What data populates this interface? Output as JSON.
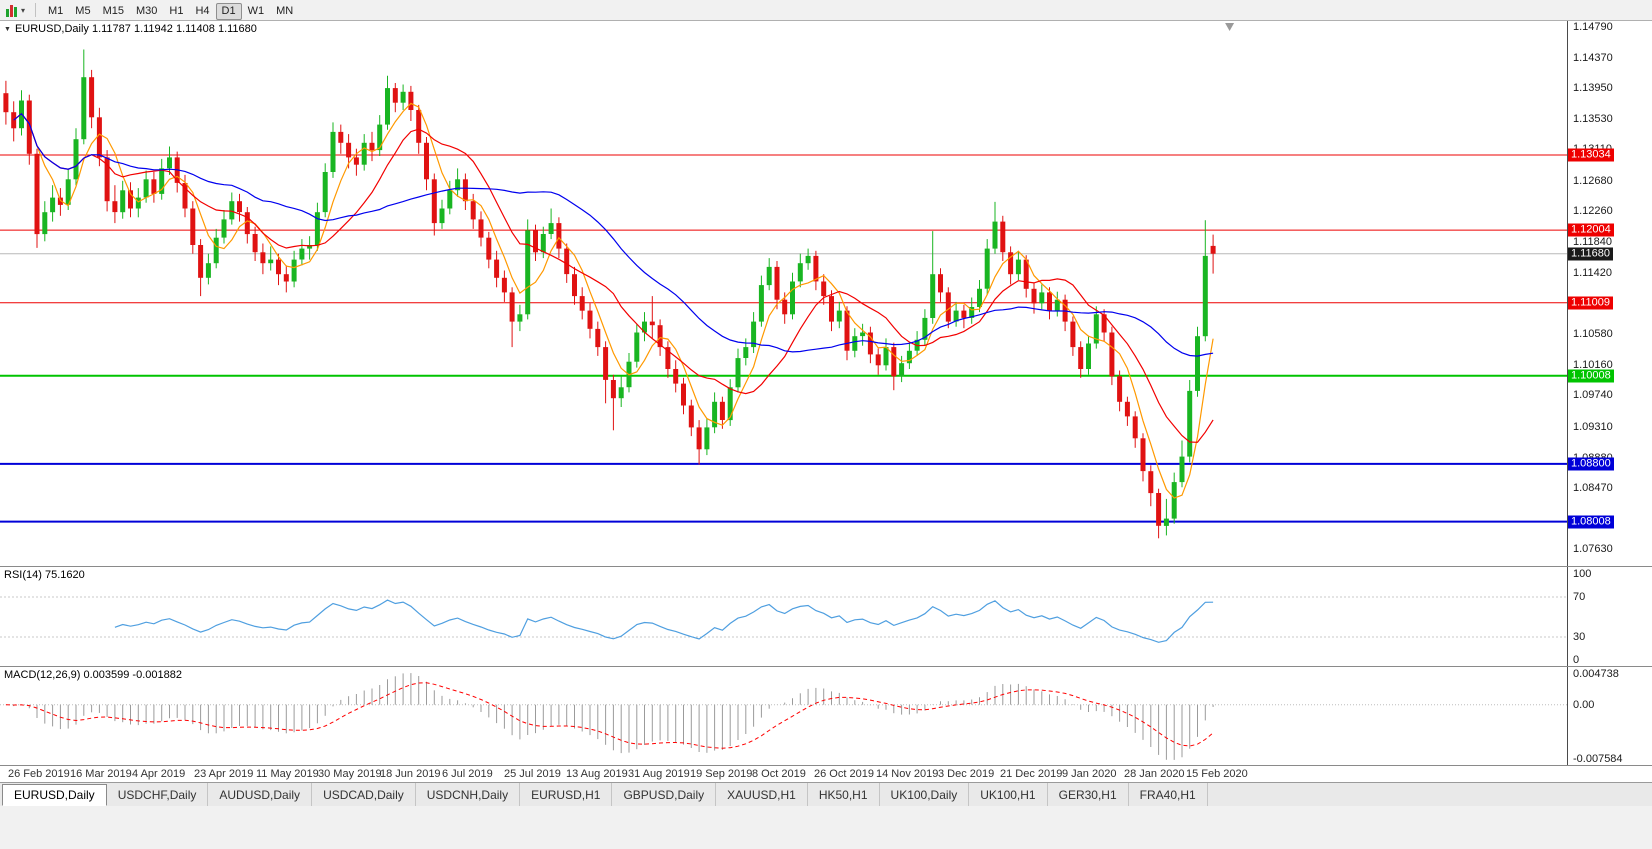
{
  "toolbar": {
    "chart_type_icon": "candlestick-chart-icon",
    "dropdown_icon": "chevron-down-icon",
    "timeframes": [
      "M1",
      "M5",
      "M15",
      "M30",
      "H1",
      "H4",
      "D1",
      "W1",
      "MN"
    ],
    "active_timeframe": "D1"
  },
  "tabs": {
    "items": [
      "EURUSD,Daily",
      "USDCHF,Daily",
      "AUDUSD,Daily",
      "USDCAD,Daily",
      "USDCNH,Daily",
      "EURUSD,H1",
      "GBPUSD,Daily",
      "XAUUSD,H1",
      "HK50,H1",
      "UK100,Daily",
      "UK100,H1",
      "GER30,H1",
      "FRA40,H1"
    ],
    "active_index": 0
  },
  "chart_data": {
    "type": "candlestick",
    "symbol": "EURUSD",
    "timeframe": "Daily",
    "title_label": "EURUSD,Daily  1.11787 1.11942 1.11408 1.11680",
    "ohlc_current": {
      "open": 1.11787,
      "high": 1.11942,
      "low": 1.11408,
      "close": 1.1168
    },
    "price_range": [
      1.074,
      1.1487
    ],
    "axis_ticks": [
      1.1479,
      1.1437,
      1.1395,
      1.1353,
      1.1311,
      1.1268,
      1.1226,
      1.1184,
      1.1142,
      1.1058,
      1.1016,
      1.0974,
      1.0931,
      1.0888,
      1.0847,
      1.0763
    ],
    "hlines": [
      {
        "price": 1.13034,
        "label": "1.13034",
        "color": "#ee0000",
        "width": 1
      },
      {
        "price": 1.12004,
        "label": "1.12004",
        "color": "#ee0000",
        "width": 1
      },
      {
        "price": 1.11009,
        "label": "1.11009",
        "color": "#ee0000",
        "width": 1
      },
      {
        "price": 1.10008,
        "label": "1.10008",
        "color": "#00c400",
        "width": 2
      },
      {
        "price": 1.088,
        "label": "1.08800",
        "color": "#0000d8",
        "width": 2
      },
      {
        "price": 1.08008,
        "label": "1.08008",
        "color": "#0000d8",
        "width": 2
      }
    ],
    "current_price": {
      "value": 1.1168,
      "label": "1.11680",
      "line_color": "#b8b8b8",
      "box_color": "#1a1a1a"
    },
    "colors": {
      "up": "#19b522",
      "down": "#e01212",
      "background": "#ffffff"
    },
    "moving_averages": [
      {
        "period": 5,
        "color": "#ff9900"
      },
      {
        "period": 12,
        "color": "#f20000"
      },
      {
        "period": 30,
        "color": "#0000ee"
      }
    ],
    "x_labels": [
      "26 Feb 2019",
      "16 Mar 2019",
      "4 Apr 2019",
      "23 Apr 2019",
      "11 May 2019",
      "30 May 2019",
      "18 Jun 2019",
      "6 Jul 2019",
      "25 Jul 2019",
      "13 Aug 2019",
      "31 Aug 2019",
      "19 Sep 2019",
      "8 Oct 2019",
      "26 Oct 2019",
      "14 Nov 2019",
      "3 Dec 2019",
      "21 Dec 2019",
      "9 Jan 2020",
      "28 Jan 2020",
      "15 Feb 2020"
    ],
    "rsi": {
      "label": "RSI(14) 75.1620",
      "period": 14,
      "current_value": 75.162,
      "color": "#4f9fe0",
      "levels": [
        70,
        30
      ],
      "axis_labels": [
        100,
        70,
        30,
        0
      ],
      "range": [
        0,
        100
      ]
    },
    "macd": {
      "label": "MACD(12,26,9) 0.003599 -0.001882",
      "fast": 12,
      "slow": 26,
      "signal_period": 9,
      "current_main": 0.003599,
      "current_signal": -0.001882,
      "histogram_color": "#9b9b9b",
      "signal_color": "#ff0000",
      "axis_labels": [
        "0.004738",
        "0.00",
        "-0.007584"
      ]
    },
    "candles_ohlc": [
      [
        1.1388,
        1.1405,
        1.1345,
        1.1362
      ],
      [
        1.1362,
        1.1377,
        1.1322,
        1.134
      ],
      [
        1.134,
        1.1392,
        1.133,
        1.1378
      ],
      [
        1.1378,
        1.1386,
        1.129,
        1.1305
      ],
      [
        1.1305,
        1.1312,
        1.1176,
        1.1195
      ],
      [
        1.1195,
        1.124,
        1.1185,
        1.1225
      ],
      [
        1.1225,
        1.1262,
        1.1212,
        1.1245
      ],
      [
        1.1245,
        1.1258,
        1.122,
        1.1235
      ],
      [
        1.1235,
        1.1285,
        1.1228,
        1.127
      ],
      [
        1.127,
        1.134,
        1.1262,
        1.1325
      ],
      [
        1.1325,
        1.1448,
        1.1318,
        1.141
      ],
      [
        1.141,
        1.142,
        1.134,
        1.1355
      ],
      [
        1.1355,
        1.1368,
        1.1288,
        1.13
      ],
      [
        1.13,
        1.131,
        1.1226,
        1.124
      ],
      [
        1.124,
        1.1262,
        1.121,
        1.1225
      ],
      [
        1.1225,
        1.1268,
        1.1216,
        1.1255
      ],
      [
        1.1255,
        1.1266,
        1.1218,
        1.123
      ],
      [
        1.123,
        1.1258,
        1.1218,
        1.1245
      ],
      [
        1.1245,
        1.1282,
        1.1238,
        1.127
      ],
      [
        1.127,
        1.128,
        1.1238,
        1.125
      ],
      [
        1.125,
        1.1298,
        1.1242,
        1.1285
      ],
      [
        1.1285,
        1.1315,
        1.1276,
        1.13
      ],
      [
        1.13,
        1.1308,
        1.1252,
        1.1265
      ],
      [
        1.1265,
        1.1276,
        1.1218,
        1.123
      ],
      [
        1.123,
        1.124,
        1.1168,
        1.118
      ],
      [
        1.118,
        1.1188,
        1.111,
        1.1135
      ],
      [
        1.1135,
        1.1168,
        1.1126,
        1.1155
      ],
      [
        1.1155,
        1.1202,
        1.1148,
        1.119
      ],
      [
        1.119,
        1.1228,
        1.1182,
        1.1215
      ],
      [
        1.1215,
        1.1252,
        1.1208,
        1.124
      ],
      [
        1.124,
        1.125,
        1.1212,
        1.1225
      ],
      [
        1.1225,
        1.1232,
        1.1182,
        1.1195
      ],
      [
        1.1195,
        1.1205,
        1.1158,
        1.117
      ],
      [
        1.117,
        1.1182,
        1.114,
        1.1155
      ],
      [
        1.1155,
        1.1178,
        1.1145,
        1.116
      ],
      [
        1.116,
        1.1168,
        1.1125,
        1.114
      ],
      [
        1.114,
        1.1152,
        1.1115,
        1.113
      ],
      [
        1.113,
        1.1172,
        1.1122,
        1.116
      ],
      [
        1.116,
        1.1188,
        1.1152,
        1.1175
      ],
      [
        1.1175,
        1.1192,
        1.116,
        1.118
      ],
      [
        1.118,
        1.1238,
        1.1172,
        1.1225
      ],
      [
        1.1225,
        1.1292,
        1.1218,
        1.128
      ],
      [
        1.128,
        1.1348,
        1.1272,
        1.1335
      ],
      [
        1.1335,
        1.1345,
        1.1305,
        1.132
      ],
      [
        1.132,
        1.1332,
        1.1285,
        1.13
      ],
      [
        1.13,
        1.1312,
        1.1275,
        1.129
      ],
      [
        1.129,
        1.1332,
        1.1282,
        1.132
      ],
      [
        1.132,
        1.1335,
        1.1295,
        1.131
      ],
      [
        1.131,
        1.1358,
        1.1302,
        1.1345
      ],
      [
        1.1345,
        1.1412,
        1.1338,
        1.1395
      ],
      [
        1.1395,
        1.1402,
        1.1362,
        1.1375
      ],
      [
        1.1375,
        1.14,
        1.1365,
        1.139
      ],
      [
        1.139,
        1.1398,
        1.135,
        1.1365
      ],
      [
        1.1365,
        1.1372,
        1.1305,
        1.132
      ],
      [
        1.132,
        1.1328,
        1.1255,
        1.127
      ],
      [
        1.127,
        1.1278,
        1.1193,
        1.121
      ],
      [
        1.121,
        1.1242,
        1.1202,
        1.123
      ],
      [
        1.123,
        1.1268,
        1.1222,
        1.1255
      ],
      [
        1.1255,
        1.1285,
        1.1246,
        1.127
      ],
      [
        1.127,
        1.1278,
        1.1228,
        1.124
      ],
      [
        1.124,
        1.125,
        1.1202,
        1.1215
      ],
      [
        1.1215,
        1.1226,
        1.1178,
        1.119
      ],
      [
        1.119,
        1.1198,
        1.1148,
        1.116
      ],
      [
        1.116,
        1.1172,
        1.1122,
        1.1135
      ],
      [
        1.1135,
        1.1145,
        1.1102,
        1.1115
      ],
      [
        1.1115,
        1.1122,
        1.104,
        1.1075
      ],
      [
        1.1075,
        1.1098,
        1.1062,
        1.1085
      ],
      [
        1.1085,
        1.1215,
        1.1078,
        1.12
      ],
      [
        1.12,
        1.1208,
        1.1158,
        1.117
      ],
      [
        1.117,
        1.1205,
        1.1162,
        1.1195
      ],
      [
        1.1195,
        1.123,
        1.1188,
        1.121
      ],
      [
        1.121,
        1.1218,
        1.1162,
        1.1175
      ],
      [
        1.1175,
        1.1182,
        1.1128,
        1.114
      ],
      [
        1.114,
        1.115,
        1.1098,
        1.111
      ],
      [
        1.111,
        1.1122,
        1.1078,
        1.109
      ],
      [
        1.109,
        1.11,
        1.1052,
        1.1065
      ],
      [
        1.1065,
        1.1075,
        1.1028,
        1.104
      ],
      [
        1.104,
        1.1048,
        1.0963,
        1.0995
      ],
      [
        1.0995,
        1.1002,
        1.0926,
        1.097
      ],
      [
        1.097,
        1.1,
        1.0958,
        1.0985
      ],
      [
        1.0985,
        1.1032,
        1.0978,
        1.102
      ],
      [
        1.102,
        1.1072,
        1.1012,
        1.106
      ],
      [
        1.106,
        1.1088,
        1.1048,
        1.1075
      ],
      [
        1.1075,
        1.111,
        1.1052,
        1.107
      ],
      [
        1.107,
        1.1078,
        1.1028,
        1.104
      ],
      [
        1.104,
        1.1048,
        1.0998,
        1.101
      ],
      [
        1.101,
        1.1022,
        1.0978,
        1.099
      ],
      [
        1.099,
        1.0998,
        1.0948,
        1.096
      ],
      [
        1.096,
        1.0968,
        1.0918,
        1.093
      ],
      [
        1.093,
        1.094,
        1.0879,
        1.09
      ],
      [
        1.09,
        1.0942,
        1.0892,
        1.093
      ],
      [
        1.093,
        1.0978,
        1.0922,
        1.0965
      ],
      [
        1.0965,
        1.0972,
        1.0928,
        1.094
      ],
      [
        1.094,
        1.0996,
        1.0932,
        1.0985
      ],
      [
        1.0985,
        1.1038,
        1.0978,
        1.1025
      ],
      [
        1.1025,
        1.1052,
        1.1015,
        1.104
      ],
      [
        1.104,
        1.1088,
        1.1032,
        1.1075
      ],
      [
        1.1075,
        1.1138,
        1.1068,
        1.1125
      ],
      [
        1.1125,
        1.1162,
        1.1118,
        1.115
      ],
      [
        1.115,
        1.1158,
        1.1092,
        1.1105
      ],
      [
        1.1105,
        1.1115,
        1.1072,
        1.1085
      ],
      [
        1.1085,
        1.1142,
        1.1078,
        1.113
      ],
      [
        1.113,
        1.1168,
        1.1122,
        1.1155
      ],
      [
        1.1155,
        1.1175,
        1.1146,
        1.1165
      ],
      [
        1.1165,
        1.1172,
        1.1118,
        1.113
      ],
      [
        1.113,
        1.114,
        1.1098,
        1.111
      ],
      [
        1.111,
        1.1118,
        1.1062,
        1.1075
      ],
      [
        1.1075,
        1.1102,
        1.1066,
        1.109
      ],
      [
        1.109,
        1.1096,
        1.1022,
        1.1035
      ],
      [
        1.1035,
        1.1066,
        1.1026,
        1.1055
      ],
      [
        1.1055,
        1.1072,
        1.1042,
        1.106
      ],
      [
        1.106,
        1.1068,
        1.1018,
        1.103
      ],
      [
        1.103,
        1.1038,
        1.1002,
        1.1015
      ],
      [
        1.1015,
        1.1052,
        1.1008,
        1.104
      ],
      [
        1.104,
        1.1046,
        1.0981,
        1.1
      ],
      [
        1.1,
        1.1028,
        1.0992,
        1.1018
      ],
      [
        1.1018,
        1.1046,
        1.101,
        1.1035
      ],
      [
        1.1035,
        1.1062,
        1.1028,
        1.105
      ],
      [
        1.105,
        1.1092,
        1.1042,
        1.108
      ],
      [
        1.108,
        1.1199,
        1.1072,
        1.114
      ],
      [
        1.114,
        1.1148,
        1.1102,
        1.1115
      ],
      [
        1.1115,
        1.1122,
        1.1066,
        1.1075
      ],
      [
        1.1075,
        1.1102,
        1.1068,
        1.109
      ],
      [
        1.109,
        1.1098,
        1.1066,
        1.108
      ],
      [
        1.108,
        1.1108,
        1.1072,
        1.1095
      ],
      [
        1.1095,
        1.1132,
        1.1088,
        1.112
      ],
      [
        1.112,
        1.1188,
        1.1112,
        1.1175
      ],
      [
        1.1175,
        1.1239,
        1.1168,
        1.1212
      ],
      [
        1.1212,
        1.122,
        1.1158,
        1.117
      ],
      [
        1.117,
        1.1178,
        1.1126,
        1.114
      ],
      [
        1.114,
        1.1172,
        1.1132,
        1.116
      ],
      [
        1.116,
        1.1166,
        1.1108,
        1.112
      ],
      [
        1.112,
        1.1128,
        1.1086,
        1.11
      ],
      [
        1.11,
        1.1126,
        1.1092,
        1.1115
      ],
      [
        1.1115,
        1.1122,
        1.1078,
        1.109
      ],
      [
        1.109,
        1.1116,
        1.1082,
        1.1105
      ],
      [
        1.1105,
        1.1112,
        1.1062,
        1.1075
      ],
      [
        1.1075,
        1.1082,
        1.1028,
        1.104
      ],
      [
        1.104,
        1.1048,
        1.0998,
        1.101
      ],
      [
        1.101,
        1.1056,
        1.1002,
        1.1045
      ],
      [
        1.1045,
        1.1096,
        1.1038,
        1.1085
      ],
      [
        1.1085,
        1.1092,
        1.1048,
        1.106
      ],
      [
        1.106,
        1.1068,
        1.0988,
        1.1
      ],
      [
        1.1,
        1.1008,
        1.0952,
        1.0965
      ],
      [
        1.0965,
        1.0972,
        1.0932,
        1.0945
      ],
      [
        1.0945,
        1.0952,
        1.0902,
        1.0915
      ],
      [
        1.0915,
        1.0922,
        1.0856,
        1.087
      ],
      [
        1.087,
        1.0878,
        1.0822,
        1.084
      ],
      [
        1.084,
        1.0846,
        1.0778,
        1.0795
      ],
      [
        1.0795,
        1.0832,
        1.0782,
        1.0805
      ],
      [
        1.0805,
        1.0868,
        1.0798,
        1.0855
      ],
      [
        1.0855,
        1.0912,
        1.0848,
        1.089
      ],
      [
        1.089,
        1.0995,
        1.0882,
        1.098
      ],
      [
        1.098,
        1.1068,
        1.0972,
        1.1055
      ],
      [
        1.1055,
        1.1214,
        1.1048,
        1.1165
      ],
      [
        1.11787,
        1.11942,
        1.11408,
        1.1168
      ]
    ]
  }
}
